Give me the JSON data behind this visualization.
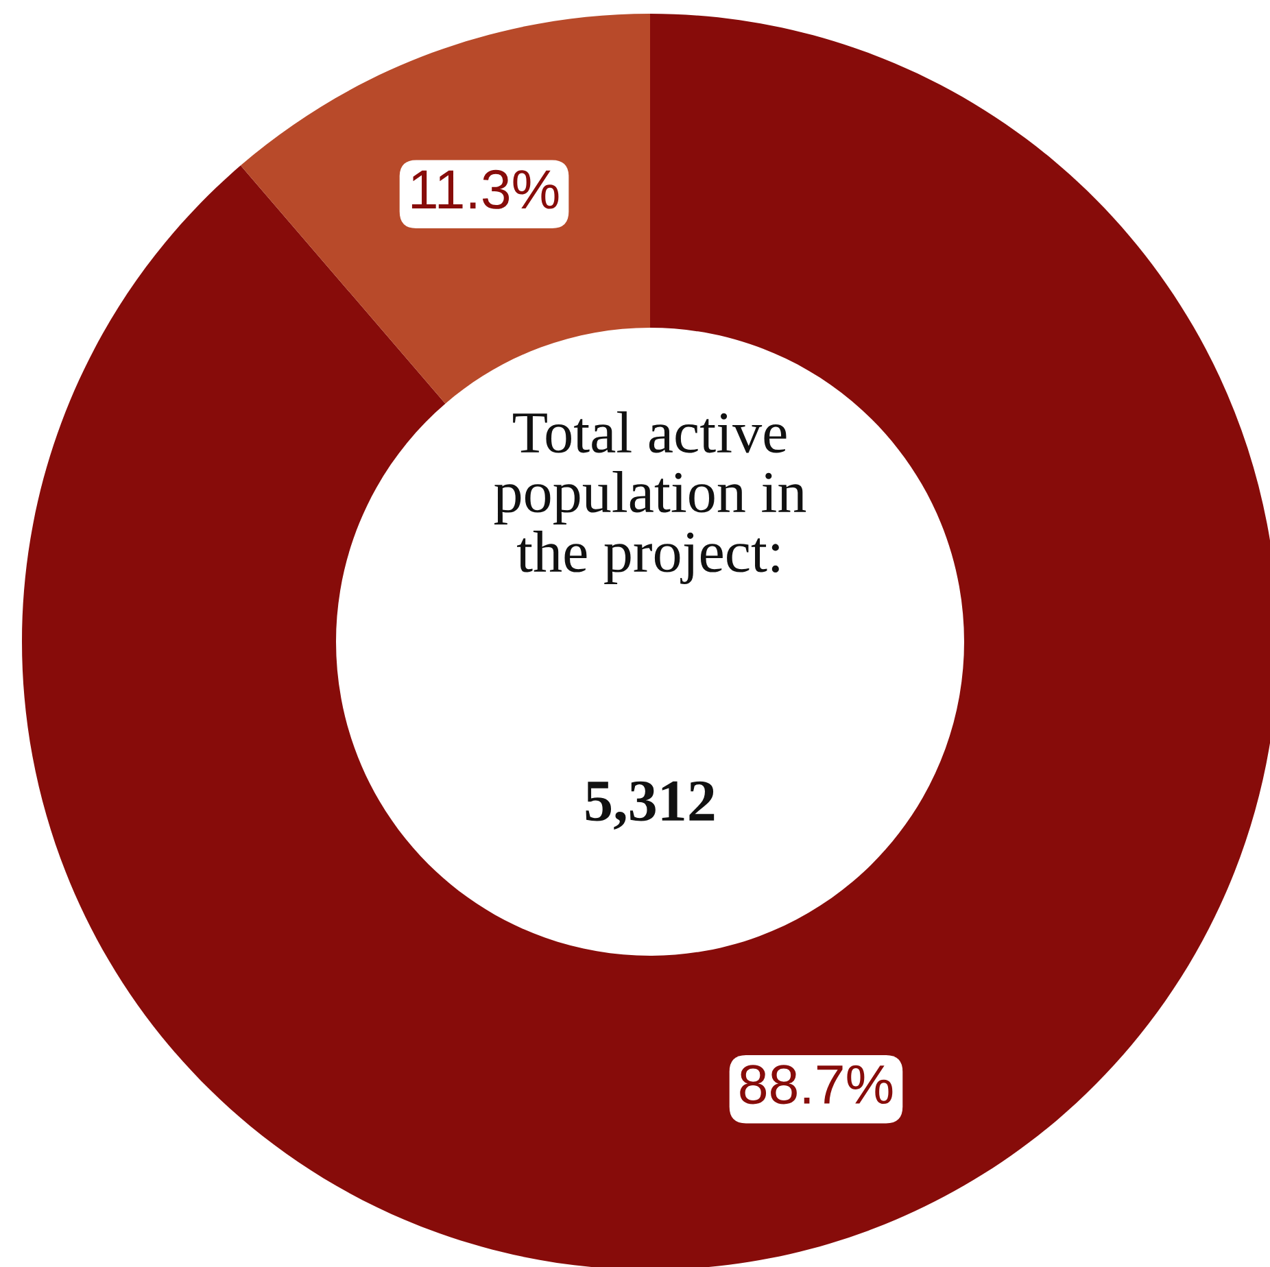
{
  "chart_data": {
    "type": "donut",
    "categories": [
      null,
      null
    ],
    "values": [
      88.7,
      11.3
    ],
    "colors": [
      "#870c0a",
      "#b84a2a"
    ],
    "value_labels": [
      "88.7%",
      "11.3%"
    ],
    "annotations": [
      "Total active\npopulation in\nthe project:",
      "5,312"
    ]
  }
}
